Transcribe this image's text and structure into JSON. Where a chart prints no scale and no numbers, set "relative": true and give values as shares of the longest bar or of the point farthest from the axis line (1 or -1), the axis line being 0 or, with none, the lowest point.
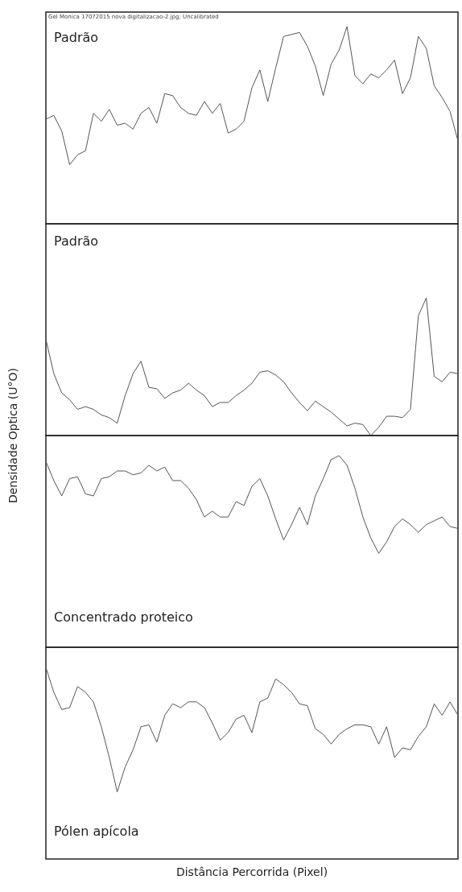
{
  "chart_data": [
    {
      "type": "line",
      "title": "Padrão",
      "annotations": [
        "Gel Monica 17072015 nova digitalizacao-2.jpg; Uncalibrated"
      ],
      "relative": true,
      "tick_labels": false,
      "categories": [
        null,
        null,
        null,
        null,
        null,
        null,
        null,
        null,
        null,
        null,
        null,
        null,
        null,
        null,
        null,
        null,
        null,
        null,
        null,
        null,
        null,
        null,
        null,
        null,
        null,
        null,
        null,
        null,
        null,
        null,
        null,
        null,
        null,
        null,
        null,
        null,
        null,
        null,
        null,
        null,
        null,
        null,
        null,
        null,
        null,
        null,
        null,
        null,
        null,
        null,
        null,
        null,
        null
      ],
      "series": [
        {
          "color": "#555555",
          "values": [
            0.53,
            0.55,
            0.47,
            0.3,
            0.35,
            0.37,
            0.56,
            0.52,
            0.58,
            0.5,
            0.51,
            0.48,
            0.56,
            0.59,
            0.51,
            0.66,
            0.65,
            0.59,
            0.56,
            0.55,
            0.62,
            0.56,
            0.61,
            0.46,
            0.48,
            0.52,
            0.69,
            0.78,
            0.62,
            0.79,
            0.95,
            0.96,
            0.97,
            0.9,
            0.8,
            0.65,
            0.81,
            0.88,
            1,
            0.75,
            0.71,
            0.76,
            0.74,
            0.78,
            0.83,
            0.66,
            0.74,
            0.95,
            0.89,
            0.7,
            0.64,
            0.57,
            0.42
          ]
        }
      ]
    },
    {
      "type": "line",
      "title": "Padrão",
      "ylabel": "Densidade Optica (U°O)",
      "relative": true,
      "tick_labels": false,
      "categories": [
        null,
        null,
        null,
        null,
        null,
        null,
        null,
        null,
        null,
        null,
        null,
        null,
        null,
        null,
        null,
        null,
        null,
        null,
        null,
        null,
        null,
        null,
        null,
        null,
        null,
        null,
        null,
        null,
        null,
        null,
        null,
        null,
        null,
        null,
        null,
        null,
        null,
        null,
        null,
        null,
        null,
        null,
        null,
        null,
        null,
        null,
        null,
        null,
        null,
        null,
        null,
        null,
        null
      ],
      "series": [
        {
          "color": "#555555",
          "values": [
            0.7,
            0.45,
            0.31,
            0.26,
            0.19,
            0.21,
            0.19,
            0.15,
            0.13,
            0.09,
            0.29,
            0.45,
            0.54,
            0.35,
            0.34,
            0.27,
            0.31,
            0.33,
            0.38,
            0.33,
            0.29,
            0.21,
            0.24,
            0.24,
            0.29,
            0.33,
            0.38,
            0.46,
            0.47,
            0.44,
            0.39,
            0.31,
            0.24,
            0.18,
            0.25,
            0.21,
            0.17,
            0.12,
            0.07,
            0.09,
            0.08,
            0,
            0.06,
            0.14,
            0.14,
            0.13,
            0.19,
            0.87,
            1,
            0.43,
            0.39,
            0.46,
            0.45
          ]
        }
      ]
    },
    {
      "type": "line",
      "title": "Concentrado proteico",
      "relative": true,
      "tick_labels": false,
      "categories": [
        null,
        null,
        null,
        null,
        null,
        null,
        null,
        null,
        null,
        null,
        null,
        null,
        null,
        null,
        null,
        null,
        null,
        null,
        null,
        null,
        null,
        null,
        null,
        null,
        null,
        null,
        null,
        null,
        null,
        null,
        null,
        null,
        null,
        null,
        null,
        null,
        null,
        null,
        null,
        null,
        null,
        null,
        null,
        null,
        null,
        null,
        null,
        null,
        null,
        null,
        null,
        null,
        null
      ],
      "series": [
        {
          "color": "#555555",
          "values": [
            0.97,
            0.87,
            0.79,
            0.88,
            0.89,
            0.8,
            0.79,
            0.88,
            0.89,
            0.92,
            0.92,
            0.9,
            0.91,
            0.95,
            0.92,
            0.94,
            0.87,
            0.87,
            0.83,
            0.77,
            0.68,
            0.71,
            0.68,
            0.68,
            0.76,
            0.74,
            0.84,
            0.88,
            0.79,
            0.67,
            0.56,
            0.64,
            0.73,
            0.64,
            0.79,
            0.88,
            0.98,
            1,
            0.95,
            0.83,
            0.68,
            0.57,
            0.49,
            0.55,
            0.63,
            0.67,
            0.64,
            0.6,
            0.64,
            0.66,
            0.68,
            0.63,
            0.62
          ]
        }
      ]
    },
    {
      "type": "line",
      "title": "Pólen apícola",
      "xlabel": "Distância Percorrida (Pixel)",
      "relative": true,
      "tick_labels": false,
      "categories": [
        null,
        null,
        null,
        null,
        null,
        null,
        null,
        null,
        null,
        null,
        null,
        null,
        null,
        null,
        null,
        null,
        null,
        null,
        null,
        null,
        null,
        null,
        null,
        null,
        null,
        null,
        null,
        null,
        null,
        null,
        null,
        null,
        null,
        null,
        null,
        null,
        null,
        null,
        null,
        null,
        null,
        null,
        null,
        null,
        null,
        null,
        null,
        null,
        null,
        null,
        null,
        null,
        null
      ],
      "series": [
        {
          "color": "#555555",
          "values": [
            1,
            0.87,
            0.78,
            0.79,
            0.9,
            0.87,
            0.82,
            0.69,
            0.53,
            0.35,
            0.48,
            0.57,
            0.69,
            0.7,
            0.61,
            0.75,
            0.81,
            0.79,
            0.82,
            0.82,
            0.79,
            0.71,
            0.62,
            0.66,
            0.73,
            0.75,
            0.66,
            0.82,
            0.84,
            0.94,
            0.91,
            0.87,
            0.81,
            0.8,
            0.68,
            0.65,
            0.6,
            0.65,
            0.68,
            0.7,
            0.7,
            0.69,
            0.6,
            0.69,
            0.53,
            0.58,
            0.57,
            0.64,
            0.69,
            0.81,
            0.75,
            0.82,
            0.75
          ]
        }
      ]
    }
  ]
}
